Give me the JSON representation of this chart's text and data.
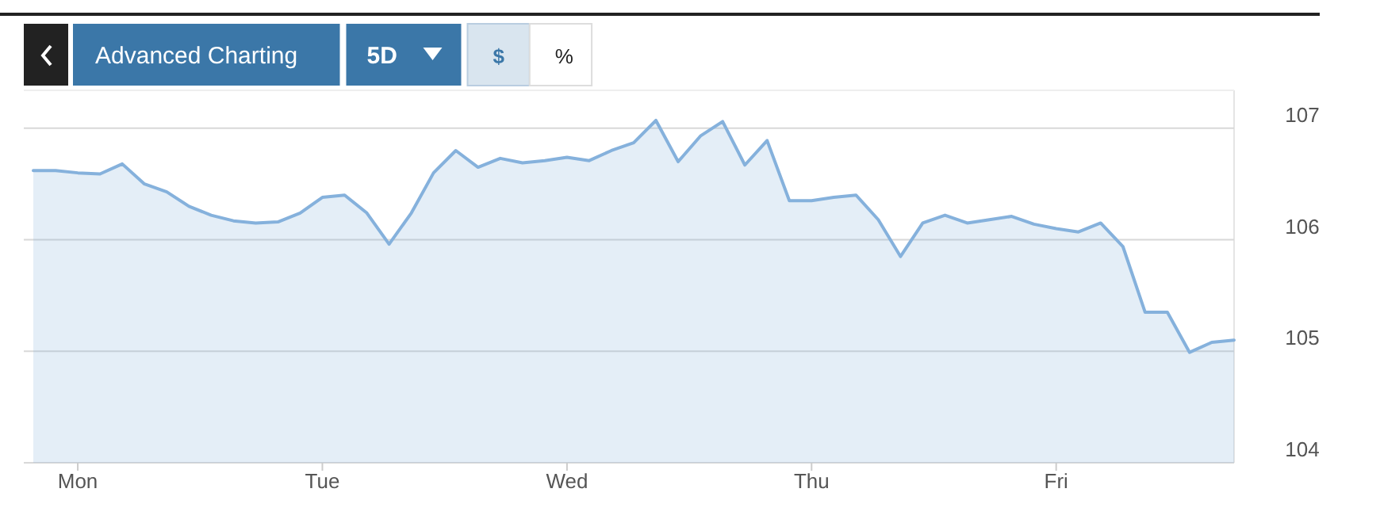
{
  "chart_data": {
    "type": "area",
    "annotations": [
      "Advanced Charting",
      "5D",
      "$",
      "%"
    ],
    "categories": [
      null,
      null,
      "Mon",
      null,
      null,
      null,
      null,
      null,
      null,
      null,
      null,
      null,
      null,
      "Tue",
      null,
      null,
      null,
      null,
      null,
      null,
      null,
      null,
      null,
      null,
      "Wed",
      null,
      null,
      null,
      null,
      null,
      null,
      null,
      null,
      null,
      null,
      "Thu",
      null,
      null,
      null,
      null,
      null,
      null,
      null,
      null,
      null,
      null,
      "Fri",
      null,
      null,
      null,
      null,
      null,
      null,
      null,
      null
    ],
    "series": [
      {
        "color": "#85b1dc",
        "values": [
          106.62,
          106.62,
          106.6,
          106.59,
          106.68,
          106.5,
          106.43,
          106.3,
          106.22,
          106.17,
          106.15,
          106.16,
          106.24,
          106.38,
          106.4,
          106.24,
          105.96,
          106.24,
          106.6,
          106.8,
          106.65,
          106.73,
          106.69,
          106.71,
          106.74,
          106.71,
          106.8,
          106.87,
          107.07,
          106.7,
          106.93,
          107.06,
          106.67,
          106.89,
          106.35,
          106.35,
          106.38,
          106.4,
          106.18,
          105.85,
          106.15,
          106.22,
          106.15,
          106.18,
          106.21,
          106.14,
          106.1,
          106.07,
          106.15,
          105.94,
          105.35,
          105.35,
          104.99,
          105.08,
          105.1
        ]
      }
    ],
    "ylim": [
      104,
      107.34
    ],
    "yticks": [
      104,
      105,
      106,
      107
    ],
    "grid": "y"
  }
}
